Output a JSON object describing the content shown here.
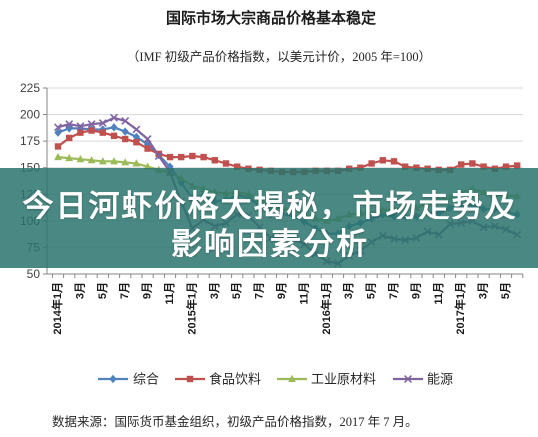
{
  "chart_data": {
    "type": "line",
    "title": "国际市场大宗商品价格基本稳定",
    "subtitle": "（IMF 初级产品价格指数，以美元计价，2005 年=100）",
    "ylim": [
      50,
      225
    ],
    "y_ticks": [
      50,
      75,
      100,
      125,
      150,
      175,
      200,
      225
    ],
    "grid": true,
    "legend": "bottom",
    "x": [
      "2014-01",
      "2014-02",
      "2014-03",
      "2014-04",
      "2014-05",
      "2014-06",
      "2014-07",
      "2014-08",
      "2014-09",
      "2014-10",
      "2014-11",
      "2014-12",
      "2015-01",
      "2015-02",
      "2015-03",
      "2015-04",
      "2015-05",
      "2015-06",
      "2015-07",
      "2015-08",
      "2015-09",
      "2015-10",
      "2015-11",
      "2015-12",
      "2016-01",
      "2016-02",
      "2016-03",
      "2016-04",
      "2016-05",
      "2016-06",
      "2016-07",
      "2016-08",
      "2016-09",
      "2016-10",
      "2016-11",
      "2016-12",
      "2017-01",
      "2017-02",
      "2017-03",
      "2017-04",
      "2017-05",
      "2017-06"
    ],
    "x_tick_labels": [
      {
        "x": "2014-01",
        "label": "2014年1月"
      },
      {
        "x": "2014-03",
        "label": "3月"
      },
      {
        "x": "2014-05",
        "label": "5月"
      },
      {
        "x": "2014-07",
        "label": "7月"
      },
      {
        "x": "2014-09",
        "label": "9月"
      },
      {
        "x": "2014-11",
        "label": "11月"
      },
      {
        "x": "2015-01",
        "label": "2015年1月"
      },
      {
        "x": "2015-03",
        "label": "3月"
      },
      {
        "x": "2015-05",
        "label": "5月"
      },
      {
        "x": "2015-07",
        "label": "7月"
      },
      {
        "x": "2015-09",
        "label": "9月"
      },
      {
        "x": "2015-11",
        "label": "11月"
      },
      {
        "x": "2016-01",
        "label": "2016年1月"
      },
      {
        "x": "2016-03",
        "label": "3月"
      },
      {
        "x": "2016-05",
        "label": "5月"
      },
      {
        "x": "2016-07",
        "label": "7月"
      },
      {
        "x": "2016-09",
        "label": "9月"
      },
      {
        "x": "2016-11",
        "label": "11月"
      },
      {
        "x": "2017-01",
        "label": "2017年1月"
      },
      {
        "x": "2017-03",
        "label": "3月"
      },
      {
        "x": "2017-05",
        "label": "5月"
      }
    ],
    "series": [
      {
        "name": "综合",
        "color": "#4F81BD",
        "marker": "diamond",
        "values": [
          183,
          187,
          187,
          186,
          186,
          188,
          184,
          179,
          172,
          162,
          151,
          136,
          121,
          124,
          118,
          120,
          124,
          122,
          114,
          106,
          106,
          105,
          99,
          93,
          88,
          88,
          95,
          98,
          102,
          106,
          104,
          104,
          104,
          108,
          107,
          112,
          114,
          115,
          111,
          111,
          109,
          106
        ]
      },
      {
        "name": "食品饮料",
        "color": "#C0504D",
        "marker": "square",
        "values": [
          170,
          178,
          183,
          185,
          183,
          180,
          177,
          174,
          168,
          163,
          160,
          160,
          161,
          160,
          157,
          154,
          151,
          149,
          148,
          147,
          146,
          146,
          146,
          147,
          147,
          147,
          149,
          150,
          154,
          157,
          156,
          151,
          150,
          149,
          148,
          148,
          153,
          154,
          151,
          149,
          151,
          152
        ]
      },
      {
        "name": "工业原材料",
        "color": "#9BBB59",
        "marker": "triangle",
        "values": [
          160,
          159,
          158,
          157,
          156,
          156,
          155,
          154,
          151,
          148,
          145,
          140,
          133,
          130,
          127,
          126,
          127,
          125,
          120,
          113,
          112,
          111,
          106,
          102,
          100,
          102,
          106,
          107,
          107,
          110,
          111,
          112,
          112,
          116,
          119,
          122,
          127,
          130,
          127,
          125,
          124,
          123
        ]
      },
      {
        "name": "能源",
        "color": "#8064A2",
        "marker": "x",
        "values": [
          188,
          191,
          189,
          191,
          192,
          197,
          194,
          186,
          177,
          161,
          146,
          118,
          93,
          101,
          95,
          98,
          106,
          105,
          94,
          84,
          85,
          84,
          78,
          69,
          62,
          60,
          67,
          72,
          80,
          86,
          83,
          82,
          84,
          90,
          87,
          97,
          98,
          100,
          94,
          95,
          92,
          87
        ]
      }
    ],
    "source_note": "数据来源：国际货币基金组织，初级产品价格指数，2017 年 7 月。"
  },
  "headline": {
    "lines": [
      "今日河虾价格大揭秘，市场走势及",
      "影响因素分析"
    ],
    "background": "#2A746D"
  }
}
